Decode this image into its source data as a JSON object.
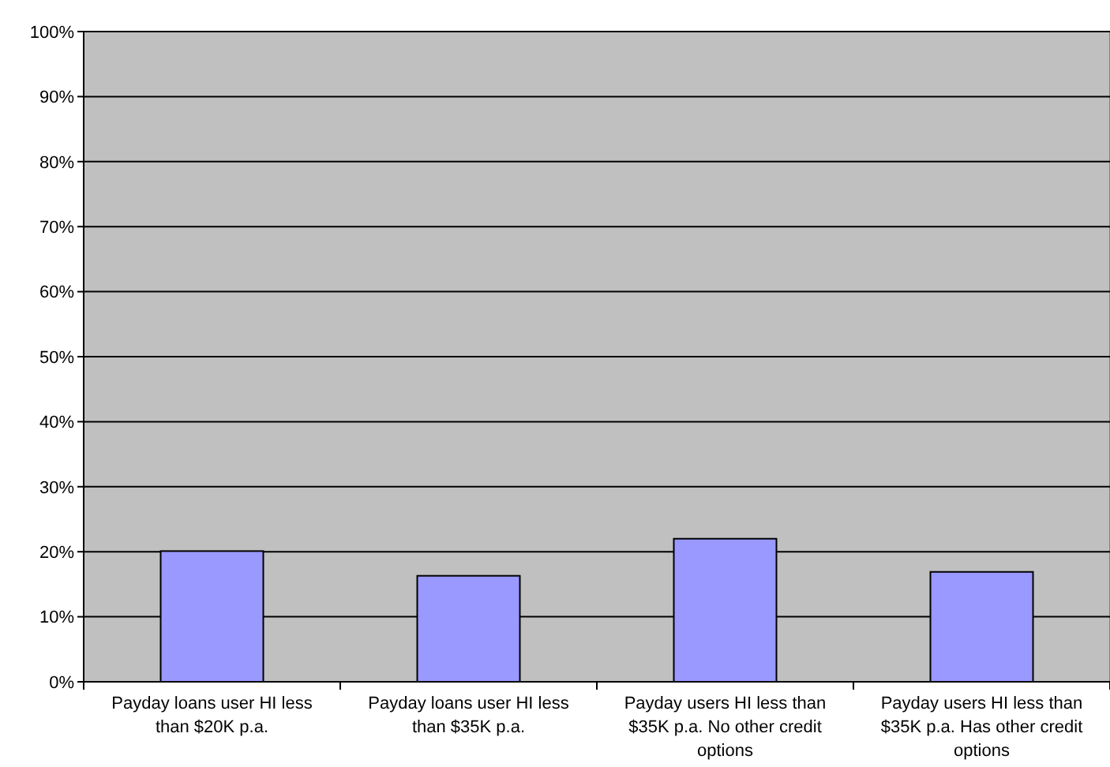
{
  "chart_data": {
    "type": "bar",
    "categories": [
      "Payday loans user HI less than $20K p.a.",
      "Payday loans user HI less than $35K p.a.",
      "Payday users HI less than $35K p.a. No other credit options",
      "Payday users HI less than $35K p.a. Has other credit options"
    ],
    "values": [
      20.1,
      16.3,
      22.0,
      16.9
    ],
    "color": "#9999ff",
    "ylim": [
      0,
      100
    ],
    "yticks": [
      {
        "value": 0,
        "label": "0%"
      },
      {
        "value": 10,
        "label": "10%"
      },
      {
        "value": 20,
        "label": "20%"
      },
      {
        "value": 30,
        "label": "30%"
      },
      {
        "value": 40,
        "label": "40%"
      },
      {
        "value": 50,
        "label": "50%"
      },
      {
        "value": 60,
        "label": "60%"
      },
      {
        "value": 70,
        "label": "70%"
      },
      {
        "value": 80,
        "label": "80%"
      },
      {
        "value": 90,
        "label": "90%"
      },
      {
        "value": 100,
        "label": "100%"
      }
    ],
    "grid": "y"
  }
}
